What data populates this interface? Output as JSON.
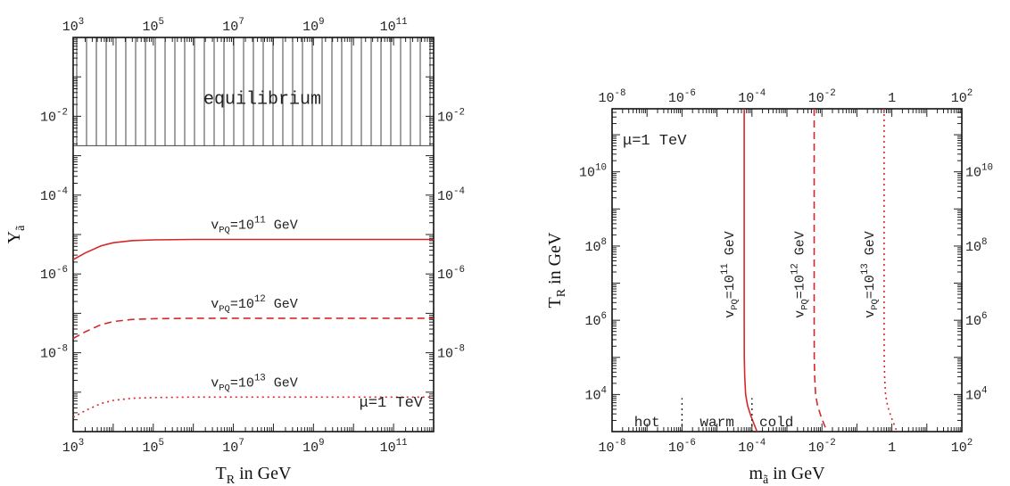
{
  "chart_data": [
    {
      "type": "line",
      "title": "",
      "xlabel": "T_R in GeV",
      "ylabel": "Y_ã",
      "xscale": "log",
      "yscale": "log",
      "xlim": [
        1000,
        1000000000000.0
      ],
      "ylim": [
        1e-10,
        1
      ],
      "x_ticks": [
        1000.0,
        100000.0,
        10000000.0,
        1000000000.0,
        100000000000.0
      ],
      "x_tick_labels": [
        [
          "10",
          "3"
        ],
        [
          "10",
          "5"
        ],
        [
          "10",
          "7"
        ],
        [
          "10",
          "9"
        ],
        [
          "10",
          "11"
        ]
      ],
      "y_ticks": [
        0.01,
        0.0001,
        1e-06,
        1e-08
      ],
      "y_tick_labels": [
        [
          "10",
          "-2"
        ],
        [
          "10",
          "-4"
        ],
        [
          "10",
          "-6"
        ],
        [
          "10",
          "-8"
        ]
      ],
      "grid": false,
      "shaded_region": {
        "label": "equilibrium",
        "y_from": 0.0018,
        "y_to": 1
      },
      "annotation": "μ=1 TeV",
      "series": [
        {
          "name": "v_PQ=10^11 GeV",
          "label_base": "v",
          "label_sub": "PQ",
          "label_eq": "=10",
          "label_exp": "11",
          "label_unit": " GeV",
          "style": "solid",
          "color": "#d62728",
          "x": [
            1000.0,
            2000.0,
            5000.0,
            10000.0,
            30000.0,
            100000.0,
            1000000.0,
            100000000.0,
            10000000000.0,
            1000000000000.0
          ],
          "y": [
            2.3e-06,
            3.4e-06,
            5.2e-06,
            6.2e-06,
            7e-06,
            7.3e-06,
            7.5e-06,
            7.5e-06,
            7.5e-06,
            7.5e-06
          ]
        },
        {
          "name": "v_PQ=10^12 GeV",
          "label_base": "v",
          "label_sub": "PQ",
          "label_eq": "=10",
          "label_exp": "12",
          "label_unit": " GeV",
          "style": "dashed",
          "color": "#d62728",
          "x": [
            1000.0,
            2000.0,
            5000.0,
            10000.0,
            30000.0,
            100000.0,
            1000000.0,
            100000000.0,
            10000000000.0,
            1000000000000.0
          ],
          "y": [
            2.3e-08,
            3.4e-08,
            5.2e-08,
            6.2e-08,
            7e-08,
            7.3e-08,
            7.5e-08,
            7.5e-08,
            7.5e-08,
            7.5e-08
          ]
        },
        {
          "name": "v_PQ=10^13 GeV",
          "label_base": "v",
          "label_sub": "PQ",
          "label_eq": "=10",
          "label_exp": "13",
          "label_unit": " GeV",
          "style": "dotted",
          "color": "#d62728",
          "x": [
            1000.0,
            2000.0,
            5000.0,
            10000.0,
            30000.0,
            100000.0,
            1000000.0,
            100000000.0,
            10000000000.0,
            1000000000000.0
          ],
          "y": [
            2.3e-10,
            3.4e-10,
            5.2e-10,
            6.2e-10,
            7e-10,
            7.3e-10,
            7.5e-10,
            7.5e-10,
            7.5e-10,
            7.5e-10
          ]
        }
      ]
    },
    {
      "type": "line",
      "title": "",
      "xlabel": "m_ã in GeV",
      "ylabel": "T_R in GeV",
      "xscale": "log",
      "yscale": "log",
      "xlim": [
        1e-08,
        100
      ],
      "ylim": [
        1000,
        500000000000.0
      ],
      "x_ticks": [
        1e-08,
        1e-06,
        0.0001,
        0.01,
        1,
        100
      ],
      "x_tick_labels": [
        [
          "10",
          "-8"
        ],
        [
          "10",
          "-6"
        ],
        [
          "10",
          "-4"
        ],
        [
          "10",
          "-2"
        ],
        [
          "1",
          ""
        ],
        [
          "10",
          "2"
        ]
      ],
      "y_ticks": [
        10000.0,
        1000000.0,
        100000000.0,
        10000000000.0
      ],
      "y_tick_labels": [
        [
          "10",
          "4"
        ],
        [
          "10",
          "6"
        ],
        [
          "10",
          "8"
        ],
        [
          "10",
          "10"
        ]
      ],
      "grid": false,
      "annotation": "μ=1 TeV",
      "regions": [
        {
          "label": "hot",
          "x": 1e-07
        },
        {
          "label": "warm",
          "x": 1e-05
        },
        {
          "label": "cold",
          "x": 0.0005
        }
      ],
      "dividers": [
        {
          "x": 1e-06,
          "style": "dotted",
          "y_top": 8000
        },
        {
          "x": 0.0001,
          "style": "dotted",
          "y_top": 8000
        }
      ],
      "series": [
        {
          "name": "v_PQ=10^11 GeV",
          "label_base": "v",
          "label_sub": "PQ",
          "label_eq": "=10",
          "label_exp": "11",
          "label_unit": " GeV",
          "style": "solid",
          "color": "#d62728",
          "x": [
            6e-05,
            6e-05,
            6.05e-05,
            6.2e-05,
            6.6e-05,
            7.5e-05,
            9.5e-05,
            0.00014
          ],
          "y": [
            500000000000.0,
            1000000.0,
            100000.0,
            30000.0,
            10000.0,
            5000.0,
            2500.0,
            1000.0
          ]
        },
        {
          "name": "v_PQ=10^12 GeV",
          "label_base": "v",
          "label_sub": "PQ",
          "label_eq": "=10",
          "label_exp": "12",
          "label_unit": " GeV",
          "style": "dashed",
          "color": "#d62728",
          "x": [
            0.006,
            0.006,
            0.00605,
            0.0062,
            0.0066,
            0.0075,
            0.0095,
            0.014
          ],
          "y": [
            500000000000.0,
            1000000.0,
            100000.0,
            30000.0,
            10000.0,
            5000.0,
            2500.0,
            1000.0
          ]
        },
        {
          "name": "v_PQ=10^13 GeV",
          "label_base": "v",
          "label_sub": "PQ",
          "label_eq": "=10",
          "label_exp": "13",
          "label_unit": " GeV",
          "style": "dotted",
          "color": "#d62728",
          "x": [
            0.6,
            0.6,
            0.605,
            0.62,
            0.66,
            0.75,
            0.95,
            1.4
          ],
          "y": [
            500000000000.0,
            1000000.0,
            100000.0,
            30000.0,
            10000.0,
            5000.0,
            2500.0,
            1000.0
          ]
        }
      ]
    }
  ]
}
